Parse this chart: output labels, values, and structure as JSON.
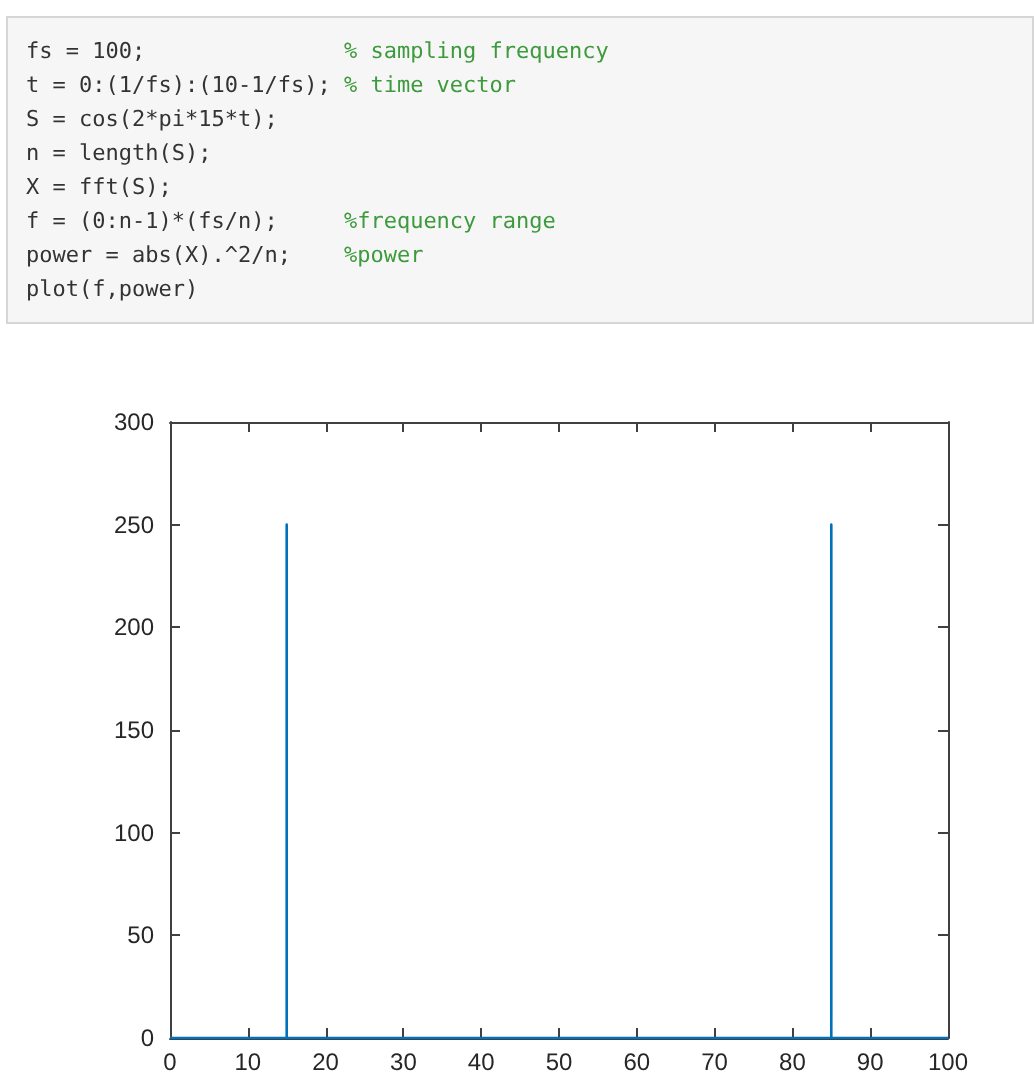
{
  "chart_data": [
    {
      "type": "other",
      "annotations": [
        "fs = 100;               % sampling frequency",
        "t = 0:(1/fs):(10-1/fs); % time vector",
        "S = cos(2*pi*15*t);",
        "n = length(S);",
        "X = fft(S);",
        "f = (0:n-1)*(fs/n);     %frequency range",
        "power = abs(X).^2/n;    %power",
        "plot(f,power)"
      ]
    },
    {
      "type": "line",
      "x": [
        0,
        15,
        15,
        15,
        85,
        85,
        85,
        100
      ],
      "values": [
        0,
        0,
        250,
        0,
        0,
        250,
        0,
        0
      ],
      "color": "#0072bd",
      "xlim": [
        0,
        100
      ],
      "xticks": [
        0,
        10,
        20,
        30,
        40,
        50,
        60,
        70,
        80,
        90,
        100
      ],
      "ylim": [
        0,
        300
      ],
      "yticks": [
        0,
        50,
        100,
        150,
        200,
        250,
        300
      ]
    }
  ]
}
